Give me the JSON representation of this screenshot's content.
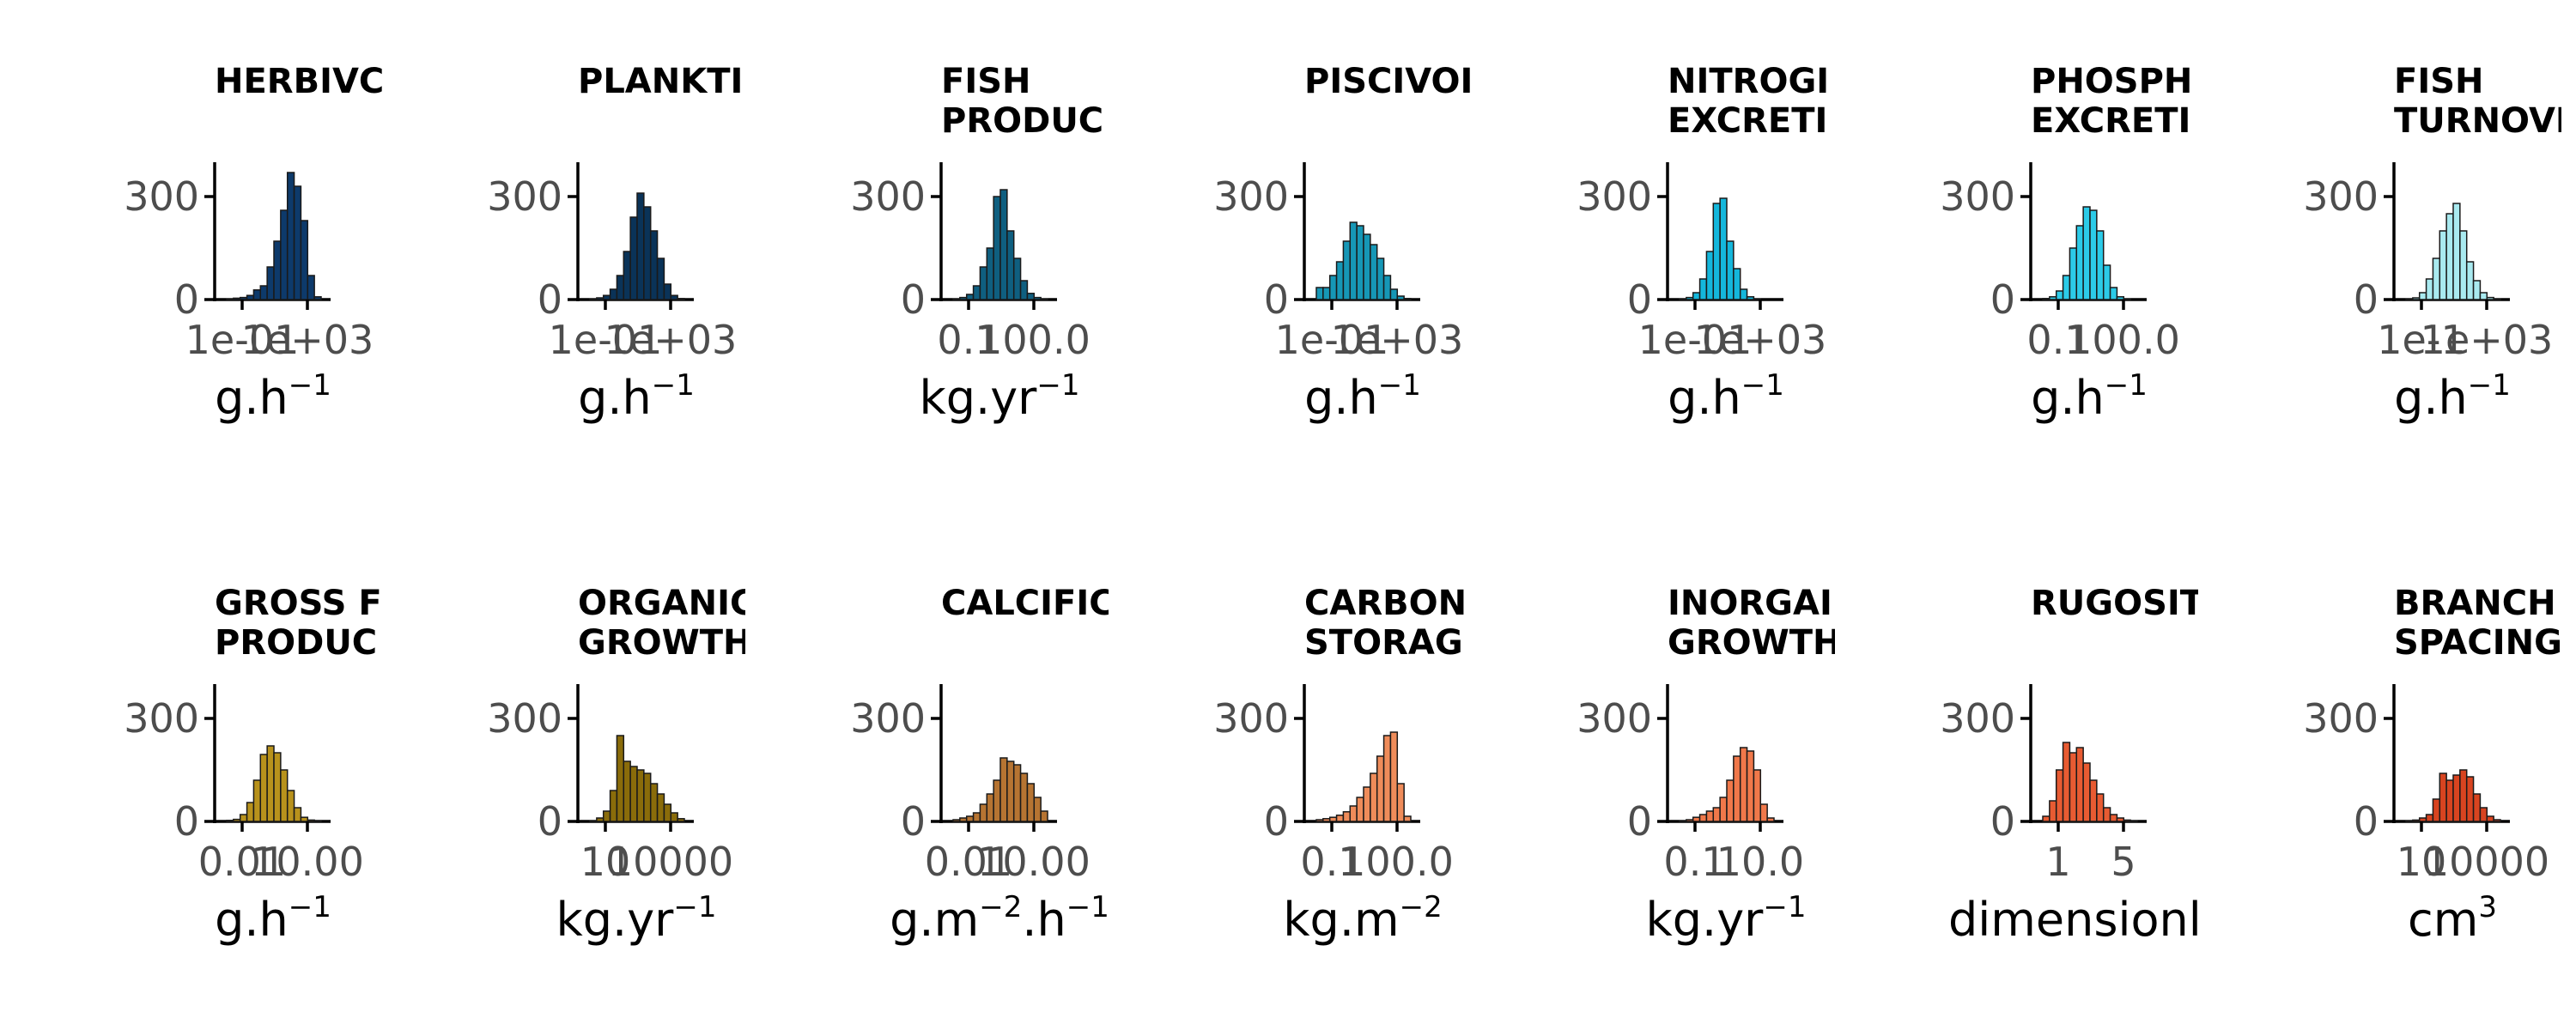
{
  "figure": {
    "background": "#ffffff"
  },
  "chart_data": [
    {
      "type": "bar",
      "title": [
        "HERBIVC"
      ],
      "xlabel": {
        "base": "g.h",
        "sup": "−1"
      },
      "yticks": [
        "300",
        "0"
      ],
      "xticks": [
        "1e-01",
        "1e+03"
      ],
      "ylim": [
        0,
        400
      ],
      "color": "#0d3a6b",
      "values": [
        2,
        4,
        6,
        12,
        28,
        40,
        95,
        170,
        260,
        370,
        330,
        230,
        70,
        8
      ]
    },
    {
      "type": "bar",
      "title": [
        "PLANKTI"
      ],
      "xlabel": {
        "base": "g.h",
        "sup": "−1"
      },
      "yticks": [
        "300",
        "0"
      ],
      "xticks": [
        "1e-01",
        "1e+03"
      ],
      "ylim": [
        0,
        400
      ],
      "color": "#0a3358",
      "values": [
        2,
        5,
        12,
        30,
        70,
        140,
        240,
        310,
        270,
        200,
        120,
        45,
        12,
        3
      ]
    },
    {
      "type": "bar",
      "title": [
        "FISH",
        "PRODUC"
      ],
      "xlabel": {
        "base": "kg.yr",
        "sup": "−1"
      },
      "yticks": [
        "300",
        "0"
      ],
      "xticks": [
        "0.1",
        "100.0"
      ],
      "ylim": [
        0,
        400
      ],
      "color": "#0f5f80",
      "values": [
        2,
        6,
        15,
        40,
        95,
        150,
        300,
        320,
        200,
        120,
        55,
        18,
        6,
        2
      ]
    },
    {
      "type": "bar",
      "title": [
        "PISCIVOI"
      ],
      "xlabel": {
        "base": "g.h",
        "sup": "−1"
      },
      "yticks": [
        "300",
        "0"
      ],
      "xticks": [
        "1e-01",
        "1e+03"
      ],
      "ylim": [
        0,
        400
      ],
      "color": "#1697b6",
      "values": [
        35,
        35,
        70,
        110,
        170,
        225,
        215,
        190,
        160,
        120,
        70,
        30,
        10,
        3
      ]
    },
    {
      "type": "bar",
      "title": [
        "NITROGI",
        "EXCRETI"
      ],
      "xlabel": {
        "base": "g.h",
        "sup": "−1"
      },
      "yticks": [
        "300",
        "0"
      ],
      "xticks": [
        "1e-01",
        "1e+03"
      ],
      "ylim": [
        0,
        400
      ],
      "color": "#14b7dc",
      "values": [
        2,
        6,
        20,
        60,
        140,
        280,
        295,
        170,
        90,
        30,
        8,
        2,
        0,
        0
      ]
    },
    {
      "type": "bar",
      "title": [
        "PHOSPH",
        "EXCRETI"
      ],
      "xlabel": {
        "base": "g.h",
        "sup": "−1"
      },
      "yticks": [
        "300",
        "0"
      ],
      "xticks": [
        "0.1",
        "100.0"
      ],
      "ylim": [
        0,
        400
      ],
      "color": "#2ccbe8",
      "values": [
        3,
        8,
        25,
        70,
        150,
        215,
        270,
        260,
        200,
        100,
        35,
        8,
        2,
        0
      ]
    },
    {
      "type": "bar",
      "title": [
        "FISH",
        "TURNOVE"
      ],
      "xlabel": {
        "base": "g.h",
        "sup": "−1"
      },
      "yticks": [
        "300",
        "0"
      ],
      "xticks": [
        "1e-1",
        "1e+03"
      ],
      "ylim": [
        0,
        400
      ],
      "color": "#a9eaf0",
      "values": [
        2,
        5,
        20,
        60,
        120,
        200,
        250,
        280,
        200,
        110,
        55,
        20,
        6,
        2
      ]
    },
    {
      "type": "bar",
      "title": [
        "GROSS F",
        "PRODUC"
      ],
      "xlabel": {
        "base": "g.h",
        "sup": "−1"
      },
      "yticks": [
        "300",
        "0"
      ],
      "xticks": [
        "0.01",
        "10.00"
      ],
      "ylim": [
        0,
        400
      ],
      "color": "#b8921c",
      "values": [
        3,
        6,
        20,
        55,
        120,
        195,
        220,
        200,
        150,
        90,
        40,
        12,
        4,
        1
      ]
    },
    {
      "type": "bar",
      "title": [
        "ORGANIC",
        "GROWTH"
      ],
      "xlabel": {
        "base": "kg.yr",
        "sup": "−1"
      },
      "yticks": [
        "300",
        "0"
      ],
      "xticks": [
        "10",
        "10000"
      ],
      "ylim": [
        0,
        400
      ],
      "color": "#8a6c0a",
      "values": [
        2,
        10,
        30,
        90,
        250,
        175,
        160,
        150,
        140,
        110,
        80,
        50,
        25,
        8
      ]
    },
    {
      "type": "bar",
      "title": [
        "CALCIFIC"
      ],
      "xlabel": {
        "base": "g.m",
        "sup": "−2",
        "base2": ".h",
        "sup2": "−1"
      },
      "yticks": [
        "300",
        "0"
      ],
      "xticks": [
        "0.01",
        "10.00"
      ],
      "ylim": [
        0,
        400
      ],
      "color": "#b67432",
      "values": [
        5,
        10,
        15,
        25,
        50,
        80,
        120,
        185,
        175,
        165,
        140,
        110,
        70,
        30
      ]
    },
    {
      "type": "bar",
      "title": [
        "CARBON",
        "STORAG"
      ],
      "xlabel": {
        "base": "kg.m",
        "sup": "−2"
      },
      "yticks": [
        "300",
        "0"
      ],
      "xticks": [
        "0.1",
        "100.0"
      ],
      "ylim": [
        0,
        400
      ],
      "color": "#ef8c5a",
      "values": [
        5,
        8,
        12,
        18,
        28,
        45,
        70,
        100,
        140,
        190,
        250,
        260,
        110,
        15
      ]
    },
    {
      "type": "bar",
      "title": [
        "INORGAI",
        "GROWTH"
      ],
      "xlabel": {
        "base": "kg.yr",
        "sup": "−1"
      },
      "yticks": [
        "300",
        "0"
      ],
      "xticks": [
        "0.1",
        "10.0"
      ],
      "ylim": [
        0,
        400
      ],
      "color": "#f0784a",
      "values": [
        2,
        5,
        12,
        20,
        30,
        40,
        70,
        120,
        190,
        215,
        205,
        150,
        50,
        10
      ]
    },
    {
      "type": "bar",
      "title": [
        "RUGOSIT"
      ],
      "xlabel": {
        "base": "dimensionle"
      },
      "yticks": [
        "300",
        "0"
      ],
      "xticks": [
        "1",
        "5"
      ],
      "ylim": [
        0,
        400
      ],
      "color": "#e85b32",
      "values": [
        15,
        60,
        150,
        230,
        200,
        215,
        170,
        120,
        80,
        40,
        20,
        10,
        4,
        2
      ]
    },
    {
      "type": "bar",
      "title": [
        "BRANCH",
        "SPACING"
      ],
      "xlabel": {
        "base": "cm",
        "sup": "3"
      },
      "yticks": [
        "300",
        "0"
      ],
      "xticks": [
        "10",
        "10000"
      ],
      "ylim": [
        0,
        400
      ],
      "color": "#d84420",
      "values": [
        2,
        4,
        10,
        20,
        65,
        140,
        120,
        135,
        150,
        130,
        80,
        40,
        15,
        5
      ]
    }
  ]
}
